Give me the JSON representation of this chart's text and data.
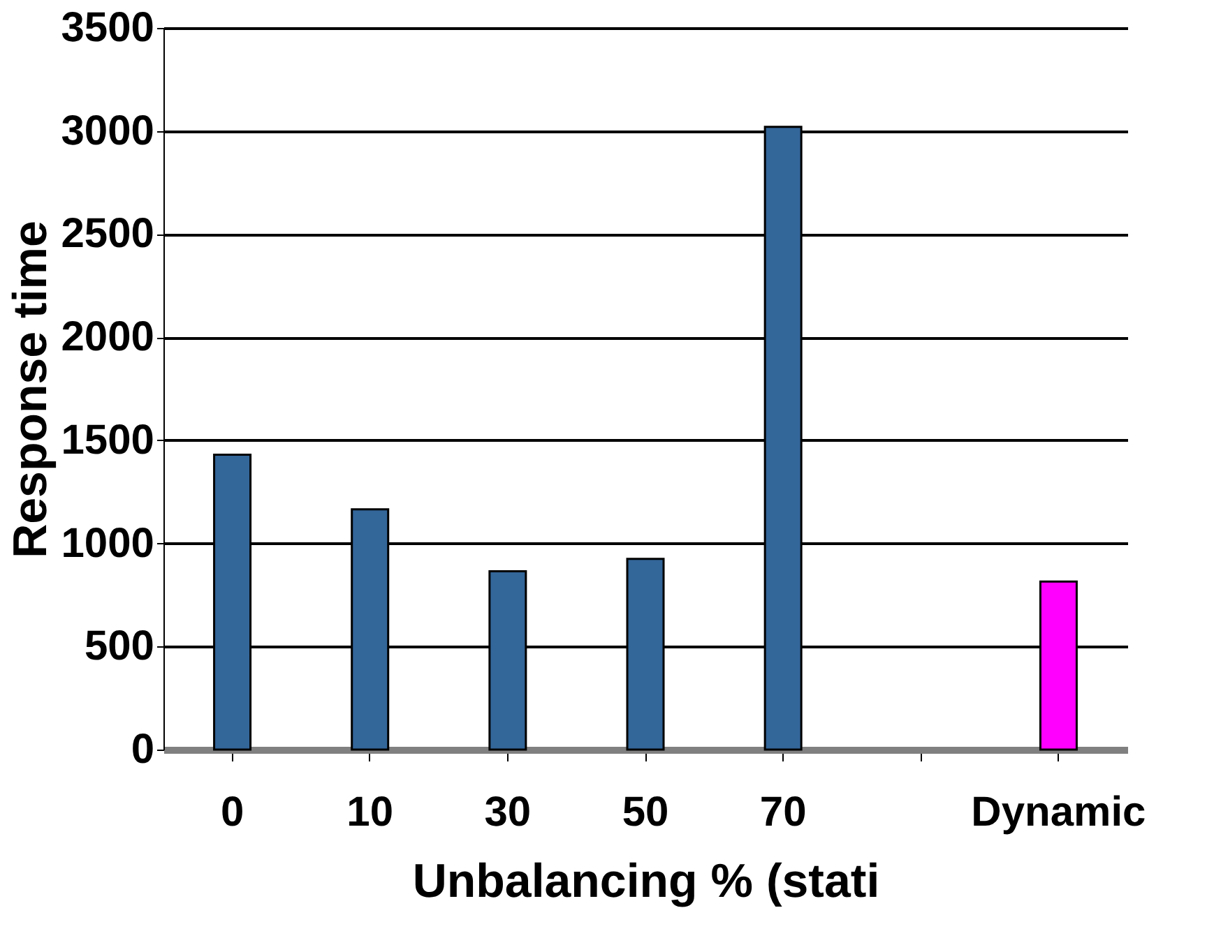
{
  "chart_data": {
    "type": "bar",
    "xlabel": "Unbalancing % (stati",
    "ylabel": "Response time",
    "categories": [
      "0",
      "10",
      "30",
      "50",
      "70",
      null,
      "Dynamic"
    ],
    "values": [
      1430,
      1165,
      865,
      925,
      3020,
      null,
      815
    ],
    "colors": [
      "#336699",
      "#336699",
      "#336699",
      "#336699",
      "#336699",
      "#336699",
      "#ff00ff"
    ],
    "ylim": [
      0,
      3500
    ],
    "yticks": [
      0,
      500,
      1000,
      1500,
      2000,
      2500,
      3000,
      3500
    ],
    "grid": "y"
  }
}
